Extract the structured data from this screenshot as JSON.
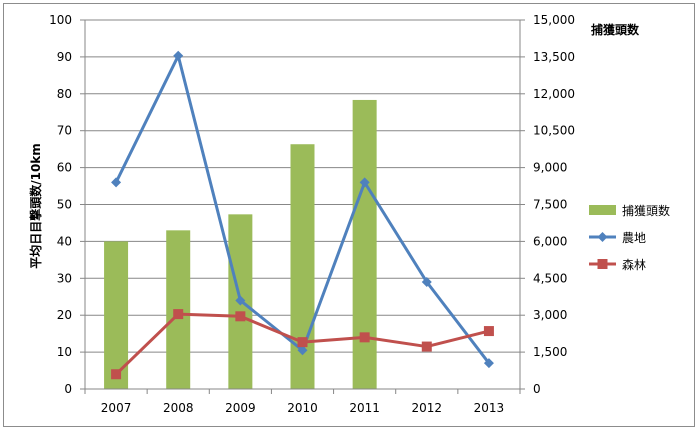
{
  "chart_data": {
    "type": "bar+line",
    "categories": [
      "2007",
      "2008",
      "2009",
      "2010",
      "2011",
      "2012",
      "2013"
    ],
    "left_axis": {
      "label": "平均日目撃頭数/10km",
      "range": [
        0,
        100
      ],
      "ticks": [
        "0",
        "10",
        "20",
        "30",
        "40",
        "50",
        "60",
        "70",
        "80",
        "90",
        "100"
      ]
    },
    "right_axis": {
      "label": "捕獲頭数",
      "range": [
        0,
        15000
      ],
      "ticks": [
        "0",
        "1,500",
        "3,000",
        "4,500",
        "6,000",
        "7,500",
        "9,000",
        "10,500",
        "12,000",
        "13,500",
        "15,000"
      ]
    },
    "series": [
      {
        "name": "捕獲頭数",
        "kind": "bar",
        "axis": "right",
        "color": "#9bbb59",
        "values": [
          6000,
          6450,
          7100,
          9950,
          11750,
          null,
          null
        ]
      },
      {
        "name": "農地",
        "kind": "line",
        "axis": "left",
        "marker": "diamond",
        "color": "#4f81bd",
        "values": [
          56,
          90.3,
          24,
          10.5,
          56,
          29,
          7
        ]
      },
      {
        "name": "森林",
        "kind": "line",
        "axis": "left",
        "marker": "square",
        "color": "#c0504d",
        "values": [
          4,
          20.3,
          19.7,
          12.7,
          14,
          11.5,
          15.7
        ]
      }
    ],
    "grid": true,
    "legend_position": "right"
  }
}
